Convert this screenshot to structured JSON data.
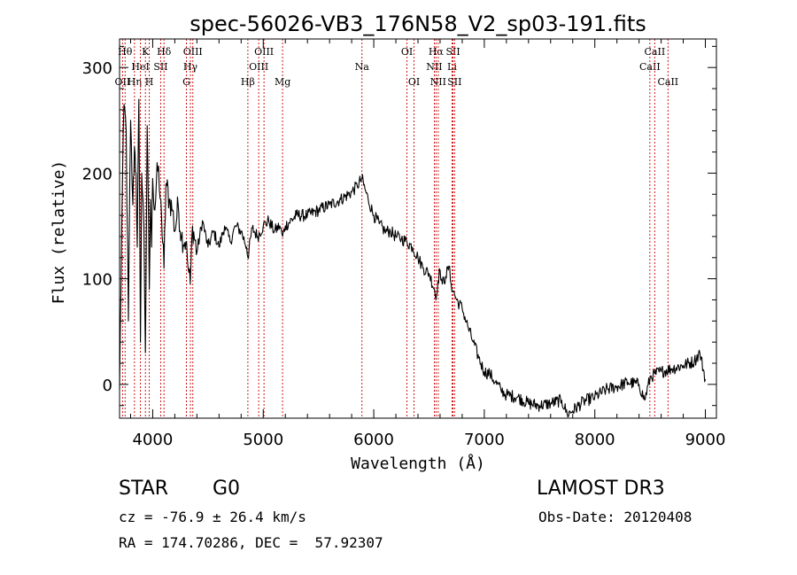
{
  "chart_data": {
    "type": "line",
    "title": "spec-56026-VB3_176N58_V2_sp03-191.fits",
    "xlabel": "Wavelength (Å)",
    "ylabel": "Flux (relative)",
    "xlim": [
      3700,
      9100
    ],
    "ylim": [
      -32,
      327
    ],
    "xticks": [
      4000,
      5000,
      6000,
      7000,
      8000,
      9000
    ],
    "yticks": [
      0,
      100,
      200,
      300
    ],
    "series": [
      {
        "name": "flux",
        "x": [
          3700,
          3720,
          3740,
          3760,
          3780,
          3800,
          3820,
          3835,
          3850,
          3860,
          3875,
          3889,
          3900,
          3920,
          3934,
          3950,
          3969,
          3980,
          3990,
          4000,
          4020,
          4040,
          4060,
          4080,
          4102,
          4120,
          4150,
          4180,
          4200,
          4230,
          4260,
          4300,
          4320,
          4340,
          4360,
          4400,
          4450,
          4500,
          4550,
          4600,
          4650,
          4700,
          4750,
          4800,
          4850,
          4861,
          4900,
          4950,
          5000,
          5050,
          5100,
          5150,
          5175,
          5200,
          5300,
          5400,
          5500,
          5600,
          5700,
          5800,
          5850,
          5893,
          5920,
          5950,
          6000,
          6050,
          6100,
          6150,
          6200,
          6250,
          6300,
          6350,
          6400,
          6450,
          6500,
          6550,
          6563,
          6580,
          6600,
          6620,
          6650,
          6680,
          6700,
          6720,
          6750,
          6800,
          6850,
          6900,
          6950,
          7000,
          7050,
          7100,
          7150,
          7200,
          7300,
          7400,
          7500,
          7600,
          7700,
          7750,
          7800,
          7900,
          8000,
          8100,
          8200,
          8300,
          8400,
          8450,
          8500,
          8542,
          8600,
          8700,
          8800,
          8900,
          8950,
          9000
        ],
        "y": [
          -5,
          150,
          265,
          240,
          60,
          250,
          170,
          225,
          200,
          130,
          270,
          40,
          200,
          150,
          30,
          245,
          90,
          175,
          130,
          195,
          165,
          210,
          185,
          160,
          110,
          190,
          175,
          165,
          145,
          170,
          140,
          135,
          110,
          95,
          150,
          125,
          155,
          130,
          145,
          130,
          150,
          135,
          150,
          145,
          130,
          120,
          148,
          140,
          150,
          155,
          145,
          150,
          140,
          150,
          160,
          160,
          165,
          170,
          175,
          182,
          188,
          195,
          185,
          175,
          160,
          152,
          145,
          145,
          140,
          138,
          135,
          130,
          120,
          110,
          105,
          90,
          80,
          98,
          108,
          95,
          102,
          112,
          95,
          88,
          80,
          72,
          55,
          40,
          25,
          12,
          10,
          2,
          -5,
          -10,
          -12,
          -18,
          -20,
          -18,
          -15,
          -28,
          -25,
          -16,
          -12,
          -5,
          -2,
          2,
          0,
          -15,
          6,
          10,
          12,
          15,
          18,
          22,
          30,
          5
        ]
      }
    ],
    "line_markers": [
      {
        "label": "OII",
        "wavelength": 3727,
        "row": 3
      },
      {
        "label": "Hθ",
        "wavelength": 3750,
        "row": 1
      },
      {
        "label": "Hη",
        "wavelength": 3835,
        "row": 3
      },
      {
        "label": "HeI",
        "wavelength": 3889,
        "row": 2
      },
      {
        "label": "K",
        "wavelength": 3934,
        "row": 1
      },
      {
        "label": "H",
        "wavelength": 3969,
        "row": 3
      },
      {
        "label": "SII",
        "wavelength": 4072,
        "row": 2
      },
      {
        "label": "Hδ",
        "wavelength": 4102,
        "row": 1
      },
      {
        "label": "Hγ",
        "wavelength": 4341,
        "row": 2
      },
      {
        "label": "OIII",
        "wavelength": 4363,
        "row": 1
      },
      {
        "label": "G",
        "wavelength": 4305,
        "row": 3
      },
      {
        "label": "Hβ",
        "wavelength": 4861,
        "row": 3
      },
      {
        "label": "OIII",
        "wavelength": 4959,
        "row": 2
      },
      {
        "label": "OIII",
        "wavelength": 5007,
        "row": 1
      },
      {
        "label": "Mg",
        "wavelength": 5175,
        "row": 3
      },
      {
        "label": "Na",
        "wavelength": 5893,
        "row": 2
      },
      {
        "label": "OI",
        "wavelength": 6300,
        "row": 1
      },
      {
        "label": "OI",
        "wavelength": 6364,
        "row": 3
      },
      {
        "label": "NII",
        "wavelength": 6548,
        "row": 2
      },
      {
        "label": "Hα",
        "wavelength": 6563,
        "row": 1
      },
      {
        "label": "NII",
        "wavelength": 6583,
        "row": 3
      },
      {
        "label": "SII",
        "wavelength": 6717,
        "row": 1
      },
      {
        "label": "Li",
        "wavelength": 6708,
        "row": 2
      },
      {
        "label": "SII",
        "wavelength": 6731,
        "row": 3
      },
      {
        "label": "CaII",
        "wavelength": 8498,
        "row": 2
      },
      {
        "label": "CaII",
        "wavelength": 8542,
        "row": 1
      },
      {
        "label": "CaII",
        "wavelength": 8662,
        "row": 3
      }
    ]
  },
  "info": {
    "object_class": "STAR",
    "subclass": "G0",
    "survey": "LAMOST DR3",
    "cz": "cz = -76.9 ± 26.4 km/s",
    "obs_date": "Obs-Date: 20120408",
    "coords": "RA = 174.70286, DEC =  57.92307"
  }
}
